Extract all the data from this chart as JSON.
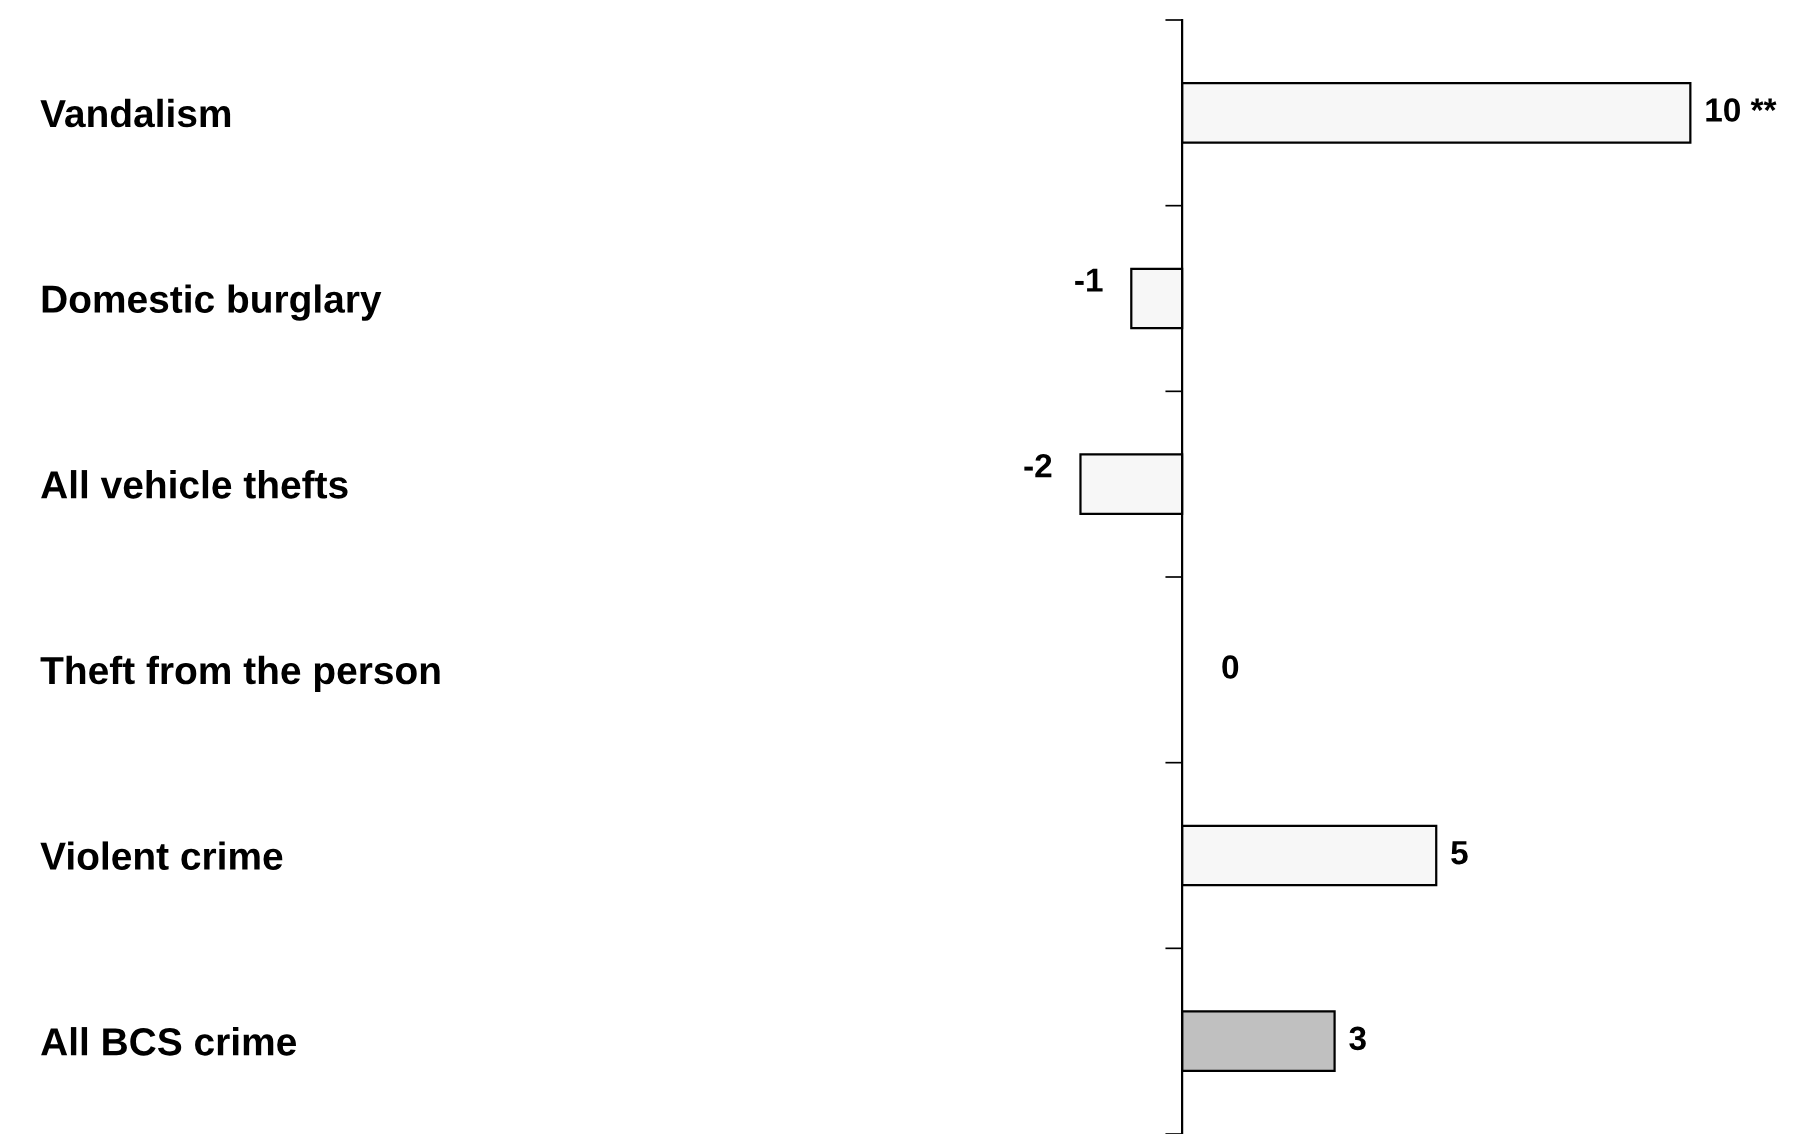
{
  "chart_data": {
    "type": "bar",
    "orientation": "horizontal",
    "categories": [
      "Vandalism",
      "Domestic burglary",
      "All vehicle thefts",
      "Theft from the person",
      "Violent crime",
      "All BCS crime"
    ],
    "values": [
      10,
      -1,
      -2,
      0,
      5,
      3
    ],
    "colors": [
      "#f7f7f7",
      "#f7f7f7",
      "#f7f7f7",
      "#f7f7f7",
      "#f7f7f7",
      "#c0c0c0"
    ],
    "value_labels": [
      "10 **",
      "-1",
      "-2",
      "0",
      "5",
      "3"
    ],
    "tick_labels": "y",
    "grid": false,
    "legend": false
  }
}
